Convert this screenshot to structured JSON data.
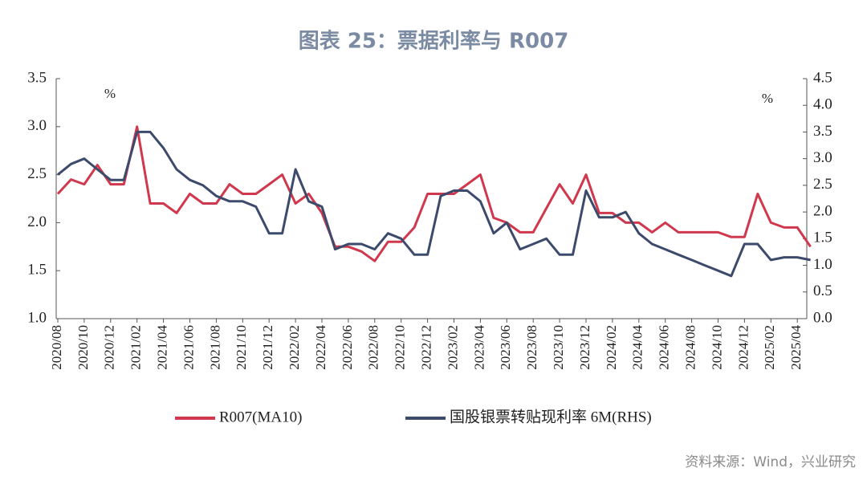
{
  "chart_data": {
    "type": "line",
    "title": "图表 25：票据利率与 R007",
    "y_unit": "%",
    "y2_unit": "%",
    "source": "资料来源：Wind，兴业研究",
    "x": [
      "2020/08",
      "2020/09",
      "2020/10",
      "2020/11",
      "2020/12",
      "2021/01",
      "2021/02",
      "2021/03",
      "2021/04",
      "2021/05",
      "2021/06",
      "2021/07",
      "2021/08",
      "2021/09",
      "2021/10",
      "2021/11",
      "2021/12",
      "2022/01",
      "2022/02",
      "2022/03",
      "2022/04",
      "2022/05",
      "2022/06",
      "2022/07",
      "2022/08",
      "2022/09",
      "2022/10",
      "2022/11",
      "2022/12",
      "2023/01",
      "2023/02",
      "2023/03",
      "2023/04",
      "2023/05",
      "2023/06",
      "2023/07",
      "2023/08",
      "2023/09",
      "2023/10",
      "2023/11",
      "2023/12",
      "2024/01",
      "2024/02",
      "2024/03",
      "2024/04",
      "2024/05",
      "2024/06",
      "2024/07",
      "2024/08",
      "2024/09",
      "2024/10",
      "2024/11",
      "2024/12",
      "2025/01",
      "2025/02",
      "2025/03",
      "2025/04",
      "2025/05"
    ],
    "series": [
      {
        "name": "R007(MA10)",
        "color": "#d0384e",
        "axis": "y",
        "values": [
          2.3,
          2.45,
          2.4,
          2.6,
          2.4,
          2.4,
          3.0,
          2.2,
          2.2,
          2.1,
          2.3,
          2.2,
          2.2,
          2.4,
          2.3,
          2.3,
          2.4,
          2.5,
          2.2,
          2.3,
          2.1,
          1.75,
          1.75,
          1.7,
          1.6,
          1.8,
          1.8,
          1.95,
          2.3,
          2.3,
          2.3,
          2.4,
          2.5,
          2.05,
          2.0,
          1.9,
          1.9,
          2.15,
          2.4,
          2.2,
          2.5,
          2.1,
          2.1,
          2.0,
          2.0,
          1.9,
          2.0,
          1.9,
          1.9,
          1.9,
          1.9,
          1.85,
          1.85,
          2.3,
          2.0,
          1.95,
          1.95,
          1.75
        ]
      },
      {
        "name": "国股银票转贴现利率 6M(RHS)",
        "color": "#3c4a6b",
        "axis": "y2",
        "values": [
          2.7,
          2.9,
          3.0,
          2.8,
          2.6,
          2.6,
          3.5,
          3.5,
          3.2,
          2.8,
          2.6,
          2.5,
          2.3,
          2.2,
          2.2,
          2.1,
          1.6,
          1.6,
          2.8,
          2.2,
          2.1,
          1.3,
          1.4,
          1.4,
          1.3,
          1.6,
          1.5,
          1.2,
          1.2,
          2.3,
          2.4,
          2.4,
          2.2,
          1.6,
          1.8,
          1.3,
          1.4,
          1.5,
          1.2,
          1.2,
          2.4,
          1.9,
          1.9,
          2.0,
          1.6,
          1.4,
          1.3,
          1.2,
          1.1,
          1.0,
          0.9,
          0.8,
          1.4,
          1.4,
          1.1,
          1.15,
          1.15,
          1.1
        ]
      }
    ],
    "ylim": [
      1.0,
      3.5
    ],
    "yticks": [
      {
        "value": 1.0,
        "label": "1.0"
      },
      {
        "value": 1.5,
        "label": "1.5"
      },
      {
        "value": 2.0,
        "label": "2.0"
      },
      {
        "value": 2.5,
        "label": "2.5"
      },
      {
        "value": 3.0,
        "label": "3.0"
      },
      {
        "value": 3.5,
        "label": "3.5"
      }
    ],
    "y2lim": [
      0.0,
      4.5
    ],
    "y2ticks": [
      {
        "value": 0.0,
        "label": "0.0"
      },
      {
        "value": 0.5,
        "label": "0.5"
      },
      {
        "value": 1.0,
        "label": "1.0"
      },
      {
        "value": 1.5,
        "label": "1.5"
      },
      {
        "value": 2.0,
        "label": "2.0"
      },
      {
        "value": 2.5,
        "label": "2.5"
      },
      {
        "value": 3.0,
        "label": "3.0"
      },
      {
        "value": 3.5,
        "label": "3.5"
      },
      {
        "value": 4.0,
        "label": "4.0"
      },
      {
        "value": 4.5,
        "label": "4.5"
      }
    ],
    "legend": "bottom",
    "grid": false
  }
}
